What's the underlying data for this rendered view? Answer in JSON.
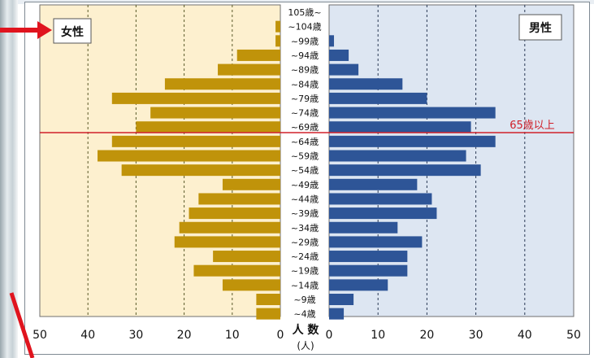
{
  "chart_data": {
    "type": "bar",
    "subtype": "population-pyramid",
    "categories": [
      "105歳~",
      "~104歳",
      "~99歳",
      "~94歳",
      "~89歳",
      "~84歳",
      "~79歳",
      "~74歳",
      "~69歳",
      "~64歳",
      "~59歳",
      "~54歳",
      "~49歳",
      "~44歳",
      "~39歳",
      "~34歳",
      "~29歳",
      "~24歳",
      "~19歳",
      "~14歳",
      "~9歳",
      "~4歳"
    ],
    "series": [
      {
        "name": "女性",
        "side": "left",
        "color": "#C0930A",
        "values": [
          0,
          1,
          1,
          9,
          13,
          24,
          35,
          27,
          30,
          35,
          38,
          33,
          12,
          17,
          19,
          21,
          22,
          14,
          18,
          12,
          5,
          5
        ]
      },
      {
        "name": "男性",
        "side": "right",
        "color": "#2E5597",
        "values": [
          0,
          0,
          1,
          4,
          6,
          15,
          20,
          34,
          29,
          34,
          28,
          31,
          18,
          21,
          22,
          14,
          19,
          16,
          16,
          12,
          5,
          3
        ]
      }
    ],
    "x_ticks_left": [
      "50",
      "40",
      "30",
      "20",
      "10",
      "0"
    ],
    "x_ticks_right": [
      "0",
      "10",
      "20",
      "30",
      "40",
      "50"
    ],
    "xlim": [
      0,
      50
    ],
    "xlabel": "人 数",
    "xlabel_unit": "(人)",
    "legend_female": "女性",
    "legend_male": "男性",
    "annotation": "65歳以上",
    "annotation_color": "#D0202A",
    "female_bg": "#FDF0CF",
    "male_bg": "#DDE6F2",
    "grid": "dashed"
  }
}
